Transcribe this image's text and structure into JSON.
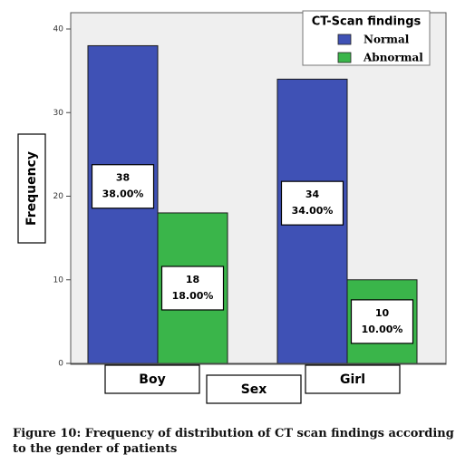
{
  "chart_data": {
    "type": "bar",
    "categories": [
      "Boy",
      "Girl"
    ],
    "series": [
      {
        "name": "Normal",
        "values": [
          38,
          34
        ],
        "labels": [
          "38",
          "34"
        ],
        "percents": [
          "38.00%",
          "34.00%"
        ],
        "color": "#3f51b5"
      },
      {
        "name": "Abnormal",
        "values": [
          18,
          10
        ],
        "labels": [
          "18",
          "10"
        ],
        "percents": [
          "18.00%",
          "10.00%"
        ],
        "color": "#3ab54a"
      }
    ],
    "xlabel": "Sex",
    "ylabel": "Frequency",
    "ylim": [
      0,
      40
    ],
    "yticks": [
      0,
      10,
      20,
      30,
      40
    ],
    "ytick_labels": [
      "0",
      "10",
      "20",
      "30",
      "40"
    ],
    "legend_title": "CT-Scan findings",
    "legend_position": "top-right",
    "grid": false,
    "plot_background": "#efefef"
  },
  "caption": {
    "line1": "Figure 10: Frequency of distribution of CT scan findings according",
    "line2": "to the gender of patients"
  }
}
